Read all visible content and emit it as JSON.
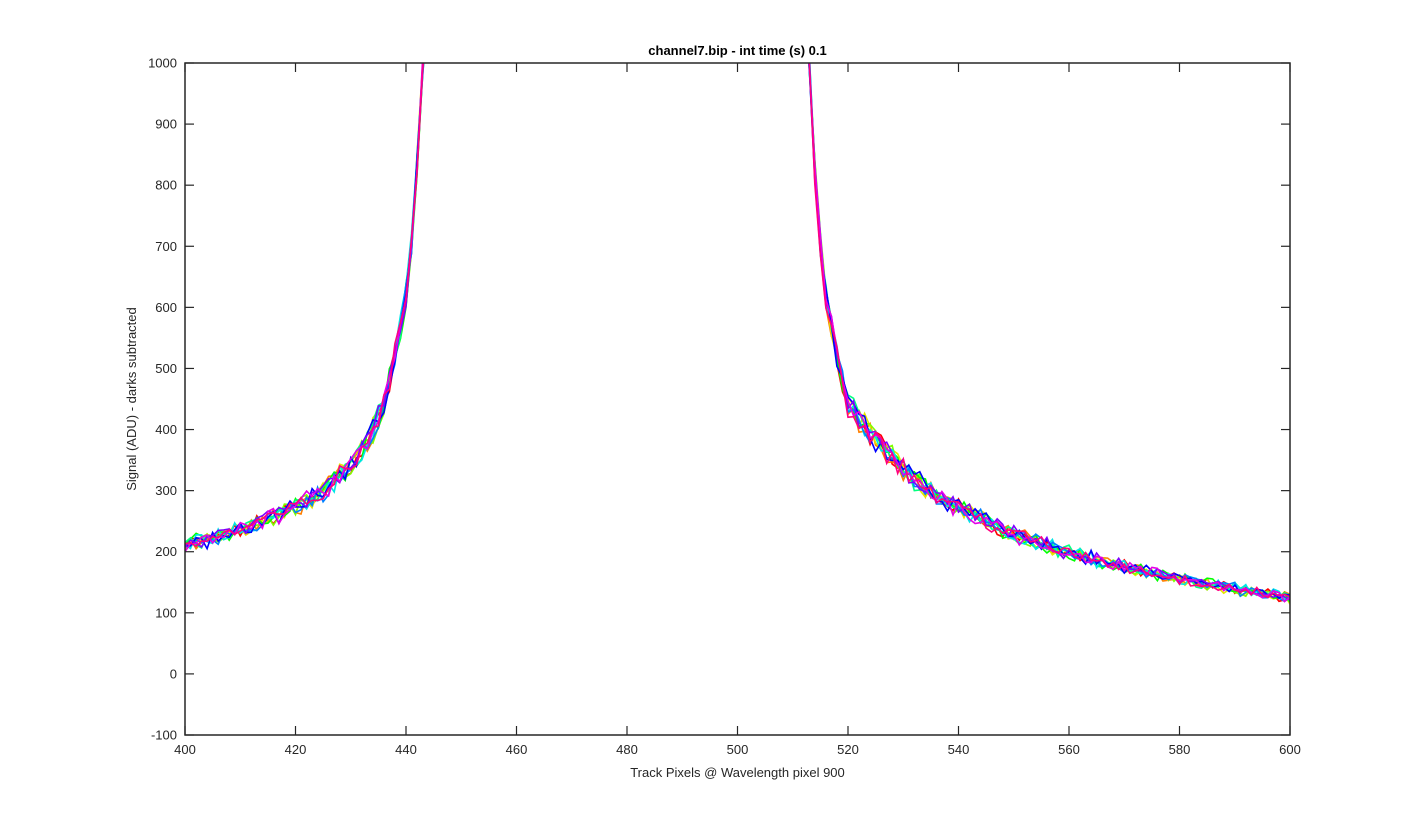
{
  "chart_data": {
    "type": "line",
    "title": "channel7.bip - int time (s) 0.1",
    "xlabel": "Track Pixels @ Wavelength pixel 900",
    "ylabel": "Signal (ADU) - darks subtracted",
    "xlim": [
      400,
      600
    ],
    "ylim": [
      -100,
      1000
    ],
    "xticks": [
      400,
      420,
      440,
      460,
      480,
      500,
      520,
      540,
      560,
      580,
      600
    ],
    "yticks": [
      -100,
      0,
      100,
      200,
      300,
      400,
      500,
      600,
      700,
      800,
      900,
      1000
    ],
    "grid": false,
    "legend": "none",
    "series_count": 12,
    "series_colors": [
      "#ff0000",
      "#ff7f00",
      "#e6e600",
      "#7fff00",
      "#00ff00",
      "#00ff7f",
      "#00e6e6",
      "#0080ff",
      "#0000ff",
      "#7f00ff",
      "#e600e6",
      "#ff0080"
    ],
    "base_curve": {
      "x": [
        400,
        405,
        410,
        415,
        420,
        425,
        430,
        433,
        436,
        438,
        440,
        441,
        442,
        443,
        444,
        512,
        513,
        514,
        515,
        516,
        518,
        520,
        525,
        530,
        535,
        540,
        545,
        550,
        560,
        570,
        580,
        590,
        600
      ],
      "y": [
        212,
        222,
        235,
        252,
        272,
        298,
        340,
        380,
        440,
        520,
        620,
        700,
        830,
        1000,
        1100,
        1100,
        1000,
        820,
        700,
        620,
        520,
        440,
        385,
        335,
        298,
        272,
        250,
        228,
        198,
        175,
        155,
        140,
        125
      ]
    },
    "noise_amplitude": 12,
    "note_values_off_scale": "curves exceed ylim near x=443 and x=513"
  }
}
